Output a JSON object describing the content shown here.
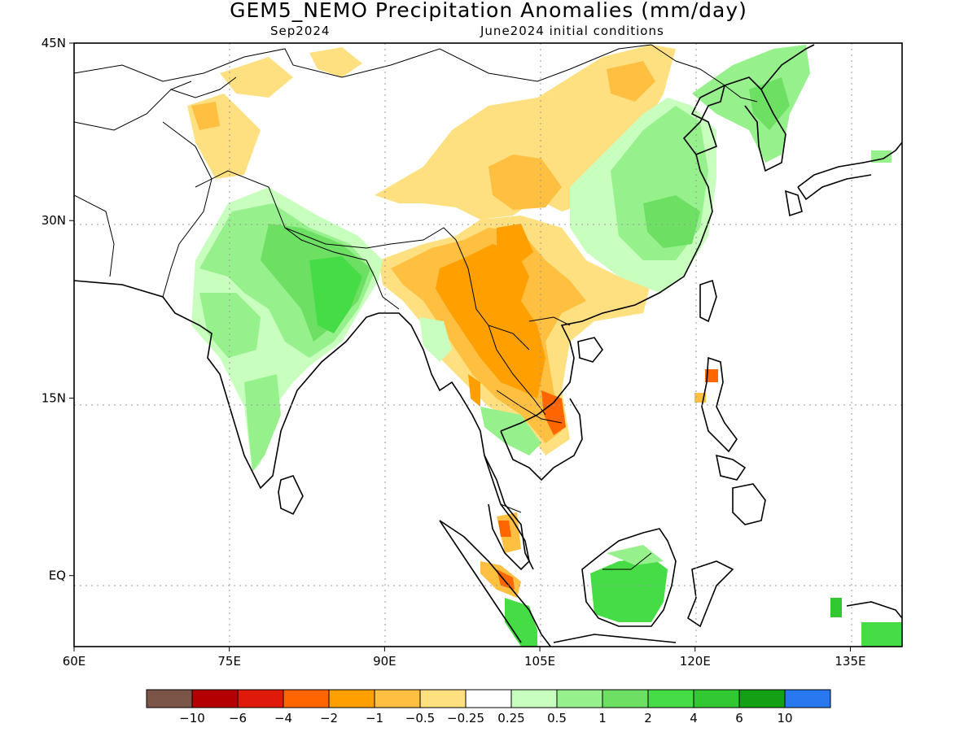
{
  "title": "GEM5_NEMO Precipitation Anomalies (mm/day)",
  "subtitle_left": "Sep2024",
  "subtitle_right": "June2024 initial conditions",
  "map_extent": {
    "lon_min": 60,
    "lon_max": 140,
    "lat_min": -6,
    "lat_max": 45
  },
  "lon_ticks": [
    {
      "value": 60,
      "label": "60E"
    },
    {
      "value": 75,
      "label": "75E"
    },
    {
      "value": 90,
      "label": "90E"
    },
    {
      "value": 105,
      "label": "105E"
    },
    {
      "value": 120,
      "label": "120E"
    },
    {
      "value": 135,
      "label": "135E"
    }
  ],
  "lat_ticks": [
    {
      "value": 45,
      "label": "45N"
    },
    {
      "value": 30,
      "label": "30N"
    },
    {
      "value": 15,
      "label": "15N"
    },
    {
      "value": 0,
      "label": "EQ"
    }
  ],
  "colorbar": {
    "colors": [
      "#7a5548",
      "#b40000",
      "#e01a0a",
      "#ff6600",
      "#ffa000",
      "#ffbf40",
      "#ffe080",
      "#ffffff",
      "#c8ffbe",
      "#96f08c",
      "#6de064",
      "#46dc46",
      "#32c832",
      "#14a014",
      "#2878f0"
    ],
    "labels": [
      "−10",
      "−6",
      "−4",
      "−2",
      "−1",
      "−0.5",
      "−0.25",
      "0.25",
      "0.5",
      "1",
      "2",
      "4",
      "6",
      "10"
    ]
  },
  "colors": {
    "light_orange": "#ffe080",
    "mid_orange": "#ffbf40",
    "orange": "#ffa000",
    "dark_orange": "#ff6600",
    "red": "#e01a0a",
    "light_green": "#c8ffbe",
    "green1": "#96f08c",
    "green2": "#6de064",
    "green3": "#46dc46",
    "green4": "#32c832"
  }
}
